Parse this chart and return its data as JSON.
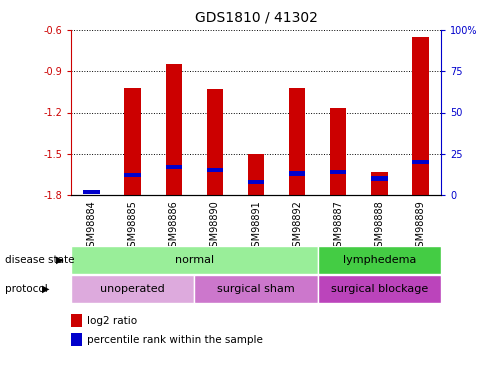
{
  "title": "GDS1810 / 41302",
  "samples": [
    "GSM98884",
    "GSM98885",
    "GSM98886",
    "GSM98890",
    "GSM98891",
    "GSM98892",
    "GSM98887",
    "GSM98888",
    "GSM98889"
  ],
  "log2_ratio": [
    -1.8,
    -1.02,
    -0.85,
    -1.03,
    -1.5,
    -1.02,
    -1.17,
    -1.63,
    -0.65
  ],
  "percentile_rank": [
    2,
    12,
    17,
    15,
    8,
    13,
    14,
    10,
    20
  ],
  "ylim_left": [
    -1.8,
    -0.6
  ],
  "ylim_right": [
    0,
    100
  ],
  "yticks_left": [
    -1.8,
    -1.5,
    -1.2,
    -0.9,
    -0.6
  ],
  "yticks_right": [
    0,
    25,
    50,
    75,
    100
  ],
  "bar_color": "#cc0000",
  "blue_color": "#0000cc",
  "bar_width": 0.4,
  "disease_state_groups": [
    {
      "label": "normal",
      "start": 0,
      "end": 6,
      "color": "#99ee99"
    },
    {
      "label": "lymphedema",
      "start": 6,
      "end": 9,
      "color": "#44cc44"
    }
  ],
  "protocol_groups": [
    {
      "label": "unoperated",
      "start": 0,
      "end": 3,
      "color": "#ddaadd"
    },
    {
      "label": "surgical sham",
      "start": 3,
      "end": 6,
      "color": "#cc77cc"
    },
    {
      "label": "surgical blockage",
      "start": 6,
      "end": 9,
      "color": "#bb44bb"
    }
  ],
  "disease_state_label": "disease state",
  "protocol_label": "protocol",
  "legend_items": [
    {
      "label": "log2 ratio",
      "color": "#cc0000"
    },
    {
      "label": "percentile rank within the sample",
      "color": "#0000cc"
    }
  ],
  "grid_color": "black",
  "left_axis_color": "#cc0000",
  "right_axis_color": "#0000cc",
  "bg_color": "#ffffff",
  "title_fontsize": 10,
  "tick_fontsize": 7,
  "label_fontsize": 8
}
